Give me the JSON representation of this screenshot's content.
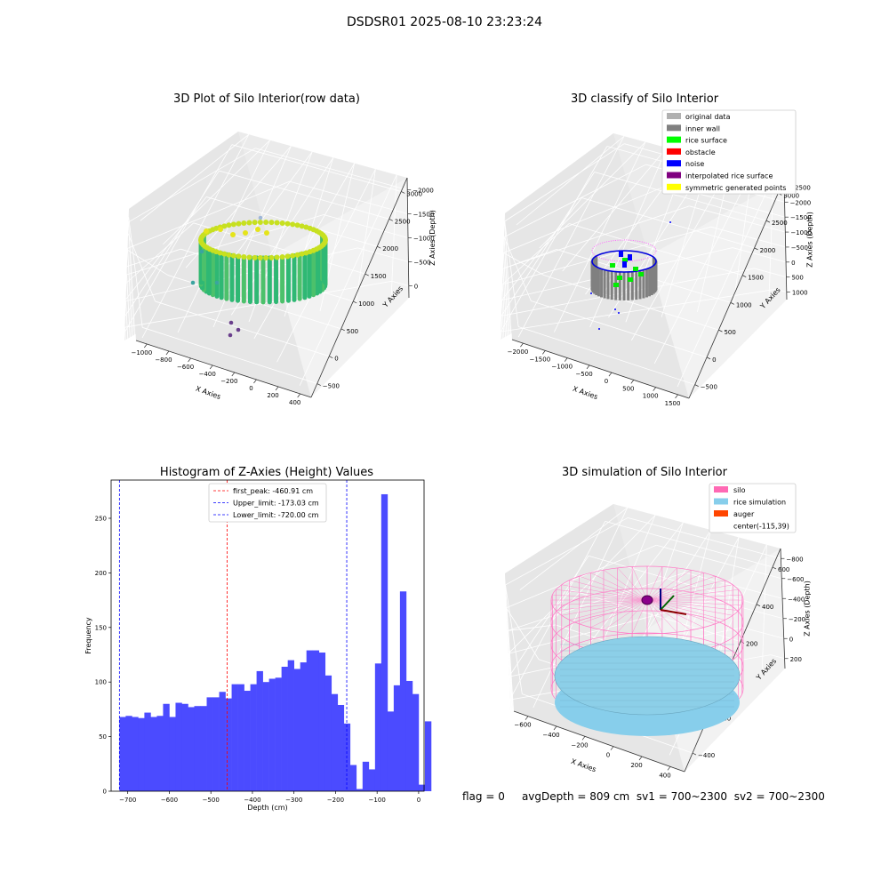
{
  "header": {
    "title": "DSDSR01 2025-08-10 23:23:24"
  },
  "panels": {
    "raw": {
      "title": "3D Plot of Silo Interior(row data)",
      "x_label": "X Axies",
      "y_label": "Y Axies",
      "z_label": "Z Axies (Depth)",
      "x_ticks": [
        "−1000",
        "−800",
        "−600",
        "−400",
        "−200",
        "0",
        "200",
        "400"
      ],
      "y_ticks": [
        "−500",
        "0",
        "500",
        "1000",
        "1500",
        "2000",
        "2500",
        "3000"
      ],
      "z_ticks": [
        "0",
        "−500",
        "−1000",
        "−1500",
        "−2000"
      ]
    },
    "classify": {
      "title": "3D classify of Silo Interior",
      "x_label": "X Axies",
      "y_label": "Y Axies",
      "z_label": "Z Axies (Depth)",
      "x_ticks": [
        "−2000",
        "−1500",
        "−1000",
        "−500",
        "0",
        "500",
        "1000",
        "1500"
      ],
      "y_ticks": [
        "−500",
        "0",
        "500",
        "1000",
        "1500",
        "2000",
        "2500",
        "3000"
      ],
      "z_ticks": [
        "1000",
        "500",
        "0",
        "−500",
        "−1000",
        "−1500",
        "−2000",
        "−2500"
      ],
      "legend": [
        {
          "label": "original data",
          "color": "#b0b0b0"
        },
        {
          "label": "inner wall",
          "color": "#808080"
        },
        {
          "label": "rice surface",
          "color": "#00ff00"
        },
        {
          "label": "obstacle",
          "color": "#ff0000"
        },
        {
          "label": "noise",
          "color": "#0000ff"
        },
        {
          "label": "interpolated rice surface",
          "color": "#800080"
        },
        {
          "label": "symmetric generated points",
          "color": "#ffff00"
        }
      ]
    },
    "simulation": {
      "title": "3D simulation of Silo Interior",
      "x_label": "X Axies",
      "y_label": "Y Axies",
      "z_label": "Z Axies (Depth)",
      "x_ticks": [
        "−600",
        "−400",
        "−200",
        "0",
        "200",
        "400"
      ],
      "y_ticks": [
        "−400",
        "−200",
        "0",
        "200",
        "400",
        "600"
      ],
      "z_ticks": [
        "200",
        "0",
        "−200",
        "−400",
        "−600",
        "−800"
      ],
      "legend": [
        {
          "label": "silo",
          "color": "#ff69b4"
        },
        {
          "label": "rice simulation",
          "color": "#87ceeb"
        },
        {
          "label": "auger",
          "color": "#ff4500"
        },
        {
          "label": "center(-115,39)",
          "color": "none"
        }
      ]
    }
  },
  "chart_data": {
    "type": "bar",
    "title": "Histogram of Z-Axies (Height) Values",
    "xlabel": "Depth (cm)",
    "ylabel": "Frequency",
    "xlim": [
      -740,
      13
    ],
    "ylim": [
      0,
      285
    ],
    "x_ticks": [
      -700,
      -600,
      -500,
      -400,
      -300,
      -200,
      -100,
      0
    ],
    "y_ticks": [
      0,
      50,
      100,
      150,
      200,
      250
    ],
    "bar_color": "#4b4bff",
    "bins": [
      {
        "x0": -720,
        "x1": -705,
        "value": 68
      },
      {
        "x0": -705,
        "x1": -690,
        "value": 69
      },
      {
        "x0": -690,
        "x1": -675,
        "value": 68
      },
      {
        "x0": -675,
        "x1": -660,
        "value": 67
      },
      {
        "x0": -660,
        "x1": -645,
        "value": 72
      },
      {
        "x0": -645,
        "x1": -630,
        "value": 68
      },
      {
        "x0": -630,
        "x1": -615,
        "value": 69
      },
      {
        "x0": -615,
        "x1": -600,
        "value": 80
      },
      {
        "x0": -600,
        "x1": -585,
        "value": 68
      },
      {
        "x0": -585,
        "x1": -570,
        "value": 81
      },
      {
        "x0": -570,
        "x1": -555,
        "value": 80
      },
      {
        "x0": -555,
        "x1": -540,
        "value": 77
      },
      {
        "x0": -540,
        "x1": -525,
        "value": 78
      },
      {
        "x0": -525,
        "x1": -510,
        "value": 78
      },
      {
        "x0": -510,
        "x1": -495,
        "value": 86
      },
      {
        "x0": -495,
        "x1": -480,
        "value": 86
      },
      {
        "x0": -480,
        "x1": -465,
        "value": 91
      },
      {
        "x0": -465,
        "x1": -450,
        "value": 85
      },
      {
        "x0": -450,
        "x1": -435,
        "value": 98
      },
      {
        "x0": -435,
        "x1": -420,
        "value": 98
      },
      {
        "x0": -420,
        "x1": -405,
        "value": 92
      },
      {
        "x0": -405,
        "x1": -390,
        "value": 98
      },
      {
        "x0": -390,
        "x1": -375,
        "value": 110
      },
      {
        "x0": -375,
        "x1": -360,
        "value": 100
      },
      {
        "x0": -360,
        "x1": -345,
        "value": 103
      },
      {
        "x0": -345,
        "x1": -330,
        "value": 104
      },
      {
        "x0": -330,
        "x1": -315,
        "value": 114
      },
      {
        "x0": -315,
        "x1": -300,
        "value": 120
      },
      {
        "x0": -300,
        "x1": -285,
        "value": 112
      },
      {
        "x0": -285,
        "x1": -270,
        "value": 118
      },
      {
        "x0": -270,
        "x1": -255,
        "value": 129
      },
      {
        "x0": -255,
        "x1": -240,
        "value": 129
      },
      {
        "x0": -240,
        "x1": -225,
        "value": 127
      },
      {
        "x0": -225,
        "x1": -210,
        "value": 106
      },
      {
        "x0": -210,
        "x1": -195,
        "value": 89
      },
      {
        "x0": -195,
        "x1": -180,
        "value": 79
      },
      {
        "x0": -180,
        "x1": -165,
        "value": 62
      },
      {
        "x0": -165,
        "x1": -150,
        "value": 24
      },
      {
        "x0": -150,
        "x1": -135,
        "value": 2
      },
      {
        "x0": -135,
        "x1": -120,
        "value": 27
      },
      {
        "x0": -120,
        "x1": -105,
        "value": 20
      },
      {
        "x0": -105,
        "x1": -90,
        "value": 117
      },
      {
        "x0": -90,
        "x1": -75,
        "value": 272
      },
      {
        "x0": -75,
        "x1": -60,
        "value": 73
      },
      {
        "x0": -60,
        "x1": -45,
        "value": 97
      },
      {
        "x0": -45,
        "x1": -30,
        "value": 183
      },
      {
        "x0": -30,
        "x1": -15,
        "value": 101
      },
      {
        "x0": -15,
        "x1": 0,
        "value": 89
      },
      {
        "x0": 0,
        "x1": 15,
        "value": 6
      },
      {
        "x0": 15,
        "x1": 30,
        "value": 64
      }
    ],
    "vlines": [
      {
        "x": -460.91,
        "label": "first_peak: -460.91 cm",
        "color": "#ff0000"
      },
      {
        "x": -173.03,
        "label": "Upper_limit: -173.03 cm",
        "color": "#0000ff"
      },
      {
        "x": -720.0,
        "label": "Lower_limit: -720.00 cm",
        "color": "#0000ff"
      }
    ]
  },
  "footer": {
    "flag": "flag = 0",
    "avg_depth": "avgDepth = 809 cm",
    "sv1": "sv1 = 700~2300",
    "sv2": "sv2 = 700~2300"
  }
}
